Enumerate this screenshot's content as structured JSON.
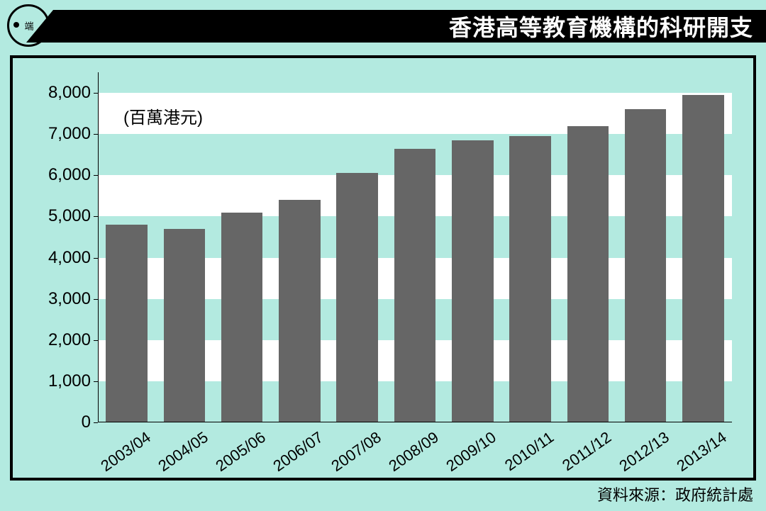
{
  "header": {
    "logo_text": "端",
    "title": "香港高等教育機構的科研開支"
  },
  "chart": {
    "type": "bar",
    "unit_label": "(百萬港元)",
    "categories": [
      "2003/04",
      "2004/05",
      "2005/06",
      "2006/07",
      "2007/08",
      "2008/09",
      "2009/10",
      "2010/11",
      "2011/12",
      "2012/13",
      "2013/14"
    ],
    "values": [
      4800,
      4700,
      5100,
      5400,
      6050,
      6650,
      6850,
      6950,
      7200,
      7600,
      7950
    ],
    "bar_color": "#666666",
    "yticks": [
      0,
      1000,
      2000,
      3000,
      4000,
      5000,
      6000,
      7000,
      8000
    ],
    "ytick_labels": [
      "0",
      "1,000",
      "2,000",
      "3,000",
      "4,000",
      "5,000",
      "6,000",
      "7,000",
      "8,000"
    ],
    "ylim_min": 0,
    "ylim_max": 8500,
    "grid_band_color": "#ffffff",
    "background_color": "#b3eae0",
    "axis_color": "#000000",
    "bar_width_ratio": 0.72,
    "tick_fontsize": 24,
    "xlabel_fontsize": 22,
    "xlabel_rotation_deg": -35
  },
  "footer": {
    "source": "資料來源：政府統計處"
  }
}
